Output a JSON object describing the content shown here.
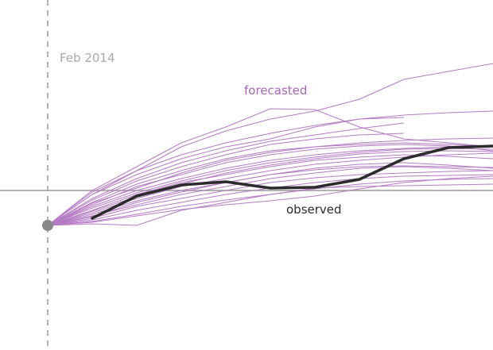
{
  "chart_data": {
    "type": "line",
    "title": "",
    "xlabel": "",
    "ylabel": "",
    "grid": false,
    "start_label": "Feb 2014",
    "x_unit_note": "",
    "colors": {
      "forecast": "#b57bc4",
      "forecast_label": "#a866b8",
      "observed": "#2b2b2b",
      "baseline": "#999999",
      "start_marker": "#888888",
      "start_label": "#aaaaaa"
    },
    "start_point": {
      "x": 0,
      "y": -4.4
    },
    "observed": {
      "name": "observed",
      "x": [
        1,
        2,
        3,
        4,
        5,
        6,
        7,
        8,
        9,
        10
      ],
      "y": [
        -3.5,
        -0.7,
        0.7,
        1.1,
        0.3,
        0.4,
        1.4,
        4.0,
        5.4,
        5.6
      ]
    },
    "forecasted": {
      "name": "forecasted",
      "series": [
        {
          "y": [
            -0.5,
            2.5,
            5.5,
            7.5,
            9,
            10,
            11.5,
            14,
            15,
            16
          ]
        },
        {
          "y": [
            0,
            3,
            6,
            8,
            10.3,
            10.2,
            8,
            6.5,
            6,
            5.5
          ]
        },
        {
          "y": [
            -0.2,
            2.5,
            4.5,
            6,
            7.2,
            8.2,
            9,
            9.5,
            9.8,
            10
          ]
        },
        {
          "y": [
            -0.5,
            2,
            4,
            5.5,
            6.5,
            8,
            9,
            9.2
          ]
        },
        {
          "y": [
            -1,
            1.5,
            3.5,
            5,
            6.2,
            7,
            7.8,
            8.5
          ]
        },
        {
          "y": [
            -1.5,
            0.8,
            2.5,
            4,
            5,
            5.5,
            5.8,
            6,
            5.8,
            5.5
          ]
        },
        {
          "y": [
            -1.8,
            0.5,
            2,
            3.5,
            4.5,
            5.2,
            5.6,
            5.8,
            5.6,
            5
          ]
        },
        {
          "y": [
            -2,
            0,
            1.5,
            2.8,
            3.8,
            4.5,
            5,
            5.3,
            5.5,
            5.5
          ]
        },
        {
          "y": [
            -2.2,
            -0.3,
            1.2,
            2.5,
            3.5,
            4.2,
            4.8,
            5.2,
            5.3,
            5.2
          ]
        },
        {
          "y": [
            -2.5,
            -0.5,
            1,
            2,
            3,
            3.8,
            4.2,
            4.5,
            4.3,
            4
          ]
        },
        {
          "y": [
            -2.8,
            -1,
            0.5,
            1.5,
            2.5,
            3.3,
            3.8,
            4.2,
            4.5,
            4.7
          ]
        },
        {
          "y": [
            -3,
            -1.3,
            0,
            1,
            2,
            2.8,
            3.3,
            3.5,
            3.2,
            2.8
          ]
        },
        {
          "y": [
            -3.2,
            -1.8,
            -0.5,
            0.5,
            1.5,
            2.2,
            2.8,
            3,
            2.8,
            2.5
          ]
        },
        {
          "y": [
            -3.5,
            -2,
            -1,
            0,
            1,
            1.6,
            2,
            2.2,
            2.4,
            2.5
          ]
        },
        {
          "y": [
            -3.7,
            -2.5,
            -1.5,
            -0.5,
            0.3,
            1,
            1.5,
            1.8,
            1.9,
            2
          ]
        },
        {
          "y": [
            -3.9,
            -3,
            -2,
            -1.2,
            -0.5,
            0.2,
            0.8,
            1.2,
            1.4,
            1.5
          ]
        },
        {
          "y": [
            -4,
            -3.2,
            -2.4,
            -1.8,
            -1.3,
            -0.7,
            0.2,
            1.0,
            1.5,
            1.8
          ]
        },
        {
          "y": [
            -4.2,
            -4.4,
            -2.5,
            -1.5,
            -0.5,
            0.3,
            0.5,
            0.6,
            0.7,
            0.8
          ]
        },
        {
          "y": [
            -1.2,
            1.2,
            3,
            4.5,
            5.8,
            6.5,
            7,
            7.2
          ]
        },
        {
          "y": [
            -2.6,
            -0.8,
            0.8,
            2.2,
            3.2,
            4,
            4.6,
            4.9,
            5,
            4.9
          ]
        },
        {
          "y": [
            -3.3,
            -1.5,
            -0.2,
            1,
            2,
            2.6,
            3,
            3.1,
            3,
            2.9
          ]
        },
        {
          "y": [
            -1.6,
            0.3,
            2.2,
            3.8,
            4.8,
            5.5,
            6,
            6.3,
            6.5,
            6.6
          ]
        }
      ]
    }
  }
}
